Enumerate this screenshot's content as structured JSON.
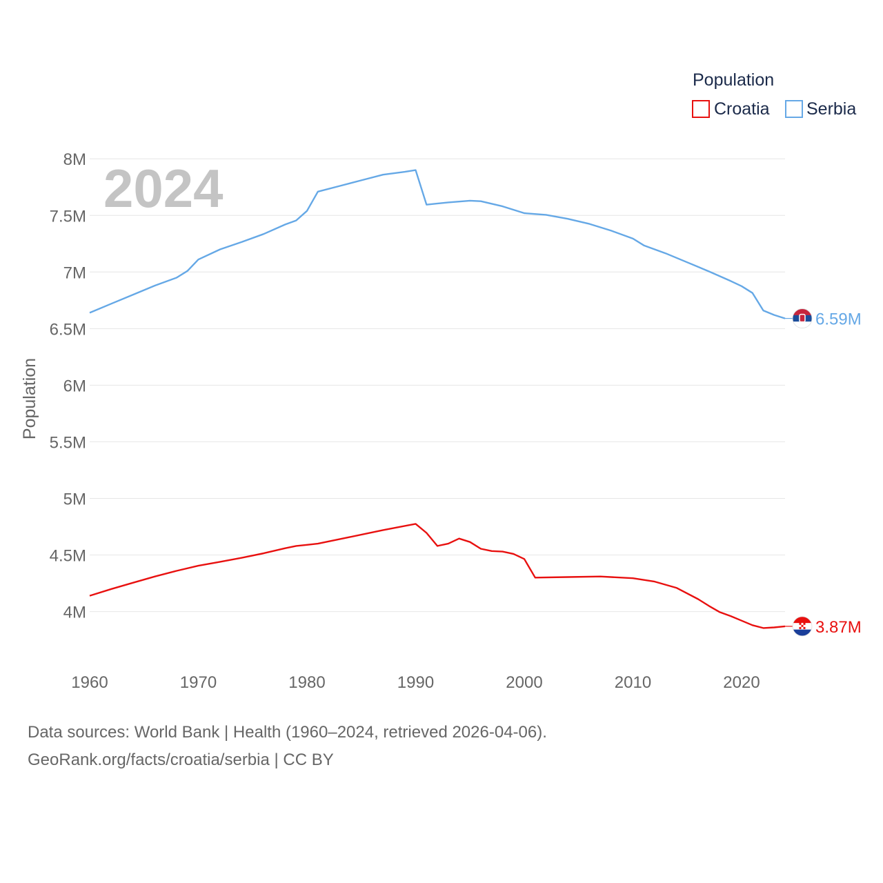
{
  "chart_data": {
    "type": "line",
    "title": "Population",
    "year_label": "2024",
    "xlabel": "",
    "ylabel": "Population",
    "xlim": [
      1960,
      2024
    ],
    "ylim": [
      3650000,
      8050000
    ],
    "x_ticks": [
      1960,
      1970,
      1980,
      1990,
      2000,
      2010,
      2020
    ],
    "y_ticks": [
      {
        "value": 4000000,
        "label": "4M"
      },
      {
        "value": 4500000,
        "label": "4.5M"
      },
      {
        "value": 5000000,
        "label": "5M"
      },
      {
        "value": 5500000,
        "label": "5.5M"
      },
      {
        "value": 6000000,
        "label": "6M"
      },
      {
        "value": 6500000,
        "label": "6.5M"
      },
      {
        "value": 7000000,
        "label": "7M"
      },
      {
        "value": 7500000,
        "label": "7.5M"
      },
      {
        "value": 8000000,
        "label": "8M"
      }
    ],
    "legend_title": "Population",
    "series": [
      {
        "name": "Croatia",
        "color": "#e8100f",
        "end_label": "3.87M",
        "flag_icon": "croatia-flag-icon",
        "points": [
          [
            1960,
            4140000
          ],
          [
            1962,
            4200000
          ],
          [
            1964,
            4255000
          ],
          [
            1966,
            4310000
          ],
          [
            1968,
            4360000
          ],
          [
            1970,
            4405000
          ],
          [
            1972,
            4440000
          ],
          [
            1974,
            4475000
          ],
          [
            1976,
            4515000
          ],
          [
            1978,
            4560000
          ],
          [
            1979,
            4580000
          ],
          [
            1980,
            4590000
          ],
          [
            1981,
            4600000
          ],
          [
            1984,
            4660000
          ],
          [
            1987,
            4720000
          ],
          [
            1990,
            4775000
          ],
          [
            1991,
            4695000
          ],
          [
            1992,
            4580000
          ],
          [
            1993,
            4600000
          ],
          [
            1994,
            4645000
          ],
          [
            1995,
            4615000
          ],
          [
            1996,
            4555000
          ],
          [
            1997,
            4535000
          ],
          [
            1998,
            4530000
          ],
          [
            1999,
            4510000
          ],
          [
            2000,
            4465000
          ],
          [
            2001,
            4300000
          ],
          [
            2004,
            4305000
          ],
          [
            2007,
            4310000
          ],
          [
            2010,
            4295000
          ],
          [
            2012,
            4265000
          ],
          [
            2014,
            4210000
          ],
          [
            2016,
            4110000
          ],
          [
            2017,
            4050000
          ],
          [
            2018,
            3995000
          ],
          [
            2019,
            3960000
          ],
          [
            2020,
            3920000
          ],
          [
            2021,
            3880000
          ],
          [
            2022,
            3855000
          ],
          [
            2023,
            3860000
          ],
          [
            2024,
            3870000
          ]
        ]
      },
      {
        "name": "Serbia",
        "color": "#65a8e6",
        "end_label": "6.59M",
        "flag_icon": "serbia-flag-icon",
        "points": [
          [
            1960,
            6640000
          ],
          [
            1962,
            6720000
          ],
          [
            1964,
            6800000
          ],
          [
            1966,
            6880000
          ],
          [
            1968,
            6950000
          ],
          [
            1969,
            7010000
          ],
          [
            1970,
            7110000
          ],
          [
            1972,
            7200000
          ],
          [
            1974,
            7265000
          ],
          [
            1976,
            7335000
          ],
          [
            1978,
            7420000
          ],
          [
            1979,
            7455000
          ],
          [
            1980,
            7540000
          ],
          [
            1981,
            7710000
          ],
          [
            1983,
            7760000
          ],
          [
            1985,
            7810000
          ],
          [
            1987,
            7860000
          ],
          [
            1989,
            7885000
          ],
          [
            1990,
            7900000
          ],
          [
            1991,
            7595000
          ],
          [
            1993,
            7615000
          ],
          [
            1995,
            7630000
          ],
          [
            1996,
            7625000
          ],
          [
            1998,
            7580000
          ],
          [
            2000,
            7520000
          ],
          [
            2002,
            7505000
          ],
          [
            2004,
            7470000
          ],
          [
            2006,
            7425000
          ],
          [
            2008,
            7365000
          ],
          [
            2010,
            7295000
          ],
          [
            2011,
            7235000
          ],
          [
            2013,
            7165000
          ],
          [
            2015,
            7085000
          ],
          [
            2017,
            7005000
          ],
          [
            2019,
            6920000
          ],
          [
            2020,
            6875000
          ],
          [
            2021,
            6815000
          ],
          [
            2022,
            6660000
          ],
          [
            2023,
            6620000
          ],
          [
            2024,
            6590000
          ]
        ]
      }
    ]
  },
  "footer": {
    "line1": "Data sources: World Bank | Health (1960–2024, retrieved 2026-04-06).",
    "line2": "GeoRank.org/facts/croatia/serbia | CC BY"
  }
}
